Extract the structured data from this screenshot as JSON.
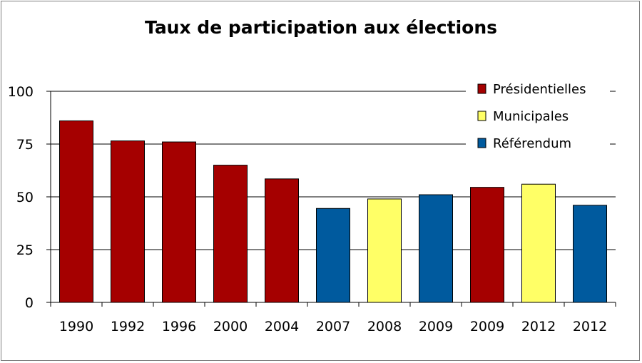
{
  "chart_data": {
    "type": "bar",
    "title": "Taux de participation aux élections",
    "xlabel": "",
    "ylabel": "",
    "ylim": [
      0,
      100
    ],
    "yticks": [
      0,
      25,
      50,
      75,
      100
    ],
    "grid": true,
    "legend_position": "top-right",
    "categories": [
      "1990",
      "1992",
      "1996",
      "2000",
      "2004",
      "2007",
      "2008",
      "2009",
      "2009",
      "2012",
      "2012"
    ],
    "values": [
      86,
      76.5,
      76,
      65,
      58.5,
      44.5,
      49,
      51,
      54.5,
      56,
      46
    ],
    "bar_types": [
      "Présidentielles",
      "Présidentielles",
      "Présidentielles",
      "Présidentielles",
      "Présidentielles",
      "Référendum",
      "Municipales",
      "Référendum",
      "Présidentielles",
      "Municipales",
      "Référendum"
    ],
    "legend": [
      {
        "name": "Présidentielles",
        "color": "#a50000"
      },
      {
        "name": "Municipales",
        "color": "#ffff66"
      },
      {
        "name": "Référendum",
        "color": "#005a9e"
      }
    ]
  }
}
